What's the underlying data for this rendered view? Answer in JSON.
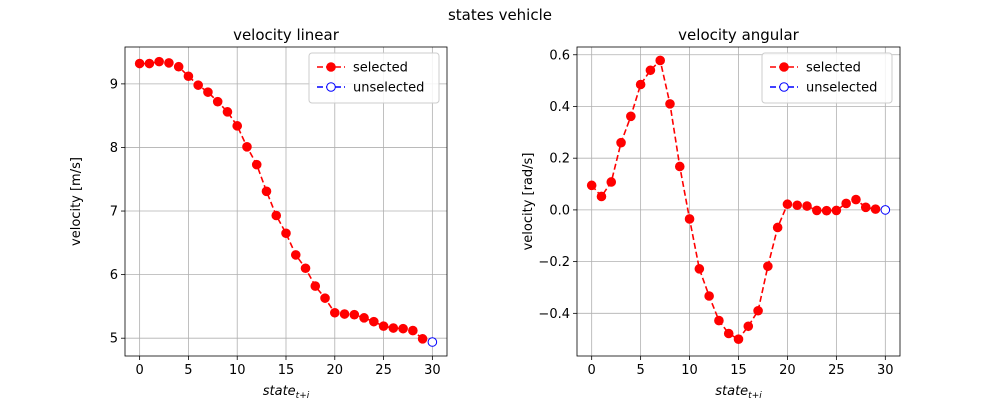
{
  "figure": {
    "suptitle": "states vehicle"
  },
  "chart_data": [
    {
      "type": "line",
      "title": "velocity linear",
      "xlabel": "state",
      "xlabel_subscript": "t+i",
      "ylabel": "velocity [m/s]",
      "xlim": [
        -1.5,
        31.5
      ],
      "ylim": [
        4.72,
        9.58
      ],
      "xticks": [
        0,
        5,
        10,
        15,
        20,
        25,
        30
      ],
      "yticks": [
        5,
        6,
        7,
        8,
        9
      ],
      "grid": true,
      "legend": "upper right",
      "series": [
        {
          "name": "selected",
          "color": "#ff0000",
          "marker": "filled-circle",
          "linestyle": "dashed",
          "x": [
            0,
            1,
            2,
            3,
            4,
            5,
            6,
            7,
            8,
            9,
            10,
            11,
            12,
            13,
            14,
            15,
            16,
            17,
            18,
            19,
            20,
            21,
            22,
            23,
            24,
            25,
            26,
            27,
            28,
            29
          ],
          "y": [
            9.32,
            9.32,
            9.35,
            9.33,
            9.27,
            9.12,
            8.98,
            8.87,
            8.72,
            8.56,
            8.34,
            8.01,
            7.73,
            7.31,
            6.93,
            6.65,
            6.31,
            6.1,
            5.82,
            5.63,
            5.4,
            5.38,
            5.37,
            5.32,
            5.26,
            5.19,
            5.16,
            5.15,
            5.12,
            4.99
          ]
        },
        {
          "name": "unselected",
          "color": "#0000ff",
          "marker": "open-circle",
          "linestyle": "dashed",
          "x": [
            30
          ],
          "y": [
            4.94
          ]
        }
      ]
    },
    {
      "type": "line",
      "title": "velocity angular",
      "xlabel": "state",
      "xlabel_subscript": "t+i",
      "ylabel": "velocity [rad/s]",
      "xlim": [
        -1.5,
        31.5
      ],
      "ylim": [
        -0.565,
        0.63
      ],
      "xticks": [
        0,
        5,
        10,
        15,
        20,
        25,
        30
      ],
      "yticks": [
        -0.4,
        -0.2,
        0.0,
        0.2,
        0.4,
        0.6
      ],
      "ytick_labels": [
        "−0.4",
        "−0.2",
        "0.0",
        "0.2",
        "0.4",
        "0.6"
      ],
      "grid": true,
      "legend": "upper right",
      "series": [
        {
          "name": "selected",
          "color": "#ff0000",
          "marker": "filled-circle",
          "linestyle": "dashed",
          "x": [
            0,
            1,
            2,
            3,
            4,
            5,
            6,
            7,
            8,
            9,
            10,
            11,
            12,
            13,
            14,
            15,
            16,
            17,
            18,
            19,
            20,
            21,
            22,
            23,
            24,
            25,
            26,
            27,
            28,
            29
          ],
          "y": [
            0.095,
            0.052,
            0.108,
            0.26,
            0.362,
            0.485,
            0.54,
            0.578,
            0.41,
            0.168,
            -0.035,
            -0.228,
            -0.333,
            -0.428,
            -0.478,
            -0.5,
            -0.45,
            -0.39,
            -0.218,
            -0.068,
            0.022,
            0.018,
            0.015,
            -0.002,
            -0.003,
            -0.002,
            0.025,
            0.04,
            0.01,
            0.003
          ]
        },
        {
          "name": "unselected",
          "color": "#0000ff",
          "marker": "open-circle",
          "linestyle": "dashed",
          "x": [
            30
          ],
          "y": [
            0.0
          ]
        }
      ]
    }
  ]
}
